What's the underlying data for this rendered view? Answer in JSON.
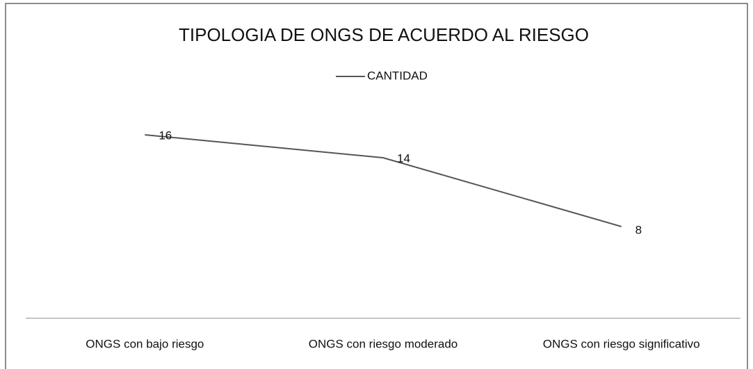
{
  "chart_data": {
    "type": "line",
    "title": "TIPOLOGIA DE ONGS DE ACUERDO AL RIESGO",
    "categories": [
      "ONGS con bajo riesgo",
      "ONGS con riesgo moderado",
      "ONGS con riesgo significativo"
    ],
    "series": [
      {
        "name": "CANTIDAD",
        "color": "#555555",
        "values": [
          16,
          14,
          8
        ]
      }
    ],
    "ylim": [
      0,
      20
    ],
    "legend": "top",
    "data_labels": true
  }
}
